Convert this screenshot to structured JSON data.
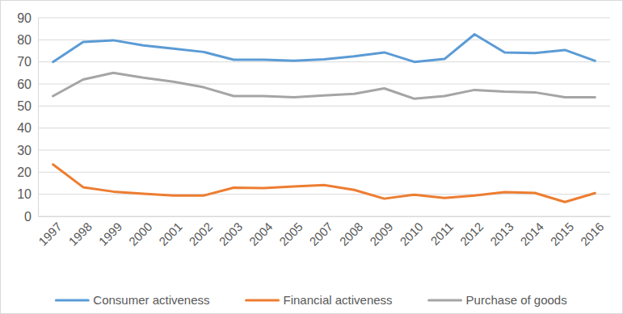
{
  "chart_data": {
    "type": "line",
    "categories": [
      "1997",
      "1998",
      "1999",
      "2000",
      "2001",
      "2002",
      "2003",
      "2004",
      "2005",
      "2007",
      "2008",
      "2009",
      "2010",
      "2011",
      "2012",
      "2013",
      "2014",
      "2015",
      "2016"
    ],
    "series": [
      {
        "name": "Consumer activeness",
        "color": "#5b9bd5",
        "values": [
          70,
          79,
          79.8,
          77.5,
          76,
          74.5,
          71,
          71,
          70.5,
          71.2,
          72.5,
          74.3,
          70,
          71.3,
          82.5,
          74.3,
          74,
          75.4,
          70.5
        ]
      },
      {
        "name": "Financial activeness",
        "color": "#ed7d31",
        "values": [
          23.5,
          13.2,
          11.2,
          10.2,
          9.4,
          9.4,
          13,
          12.8,
          13.5,
          14.2,
          12,
          8,
          9.8,
          8.3,
          9.4,
          11,
          10.6,
          6.5,
          10.5
        ]
      },
      {
        "name": "Purchase of goods",
        "color": "#a5a5a5",
        "values": [
          54.5,
          62,
          65,
          62.8,
          61,
          58.5,
          54.5,
          54.5,
          54,
          54.8,
          55.5,
          58,
          53.3,
          54.5,
          57.3,
          56.5,
          56.2,
          54,
          54
        ]
      }
    ],
    "ylim": [
      0,
      90
    ],
    "yticks": [
      0,
      10,
      20,
      30,
      40,
      50,
      60,
      70,
      80,
      90
    ],
    "grid": true,
    "legend": "bottom"
  }
}
